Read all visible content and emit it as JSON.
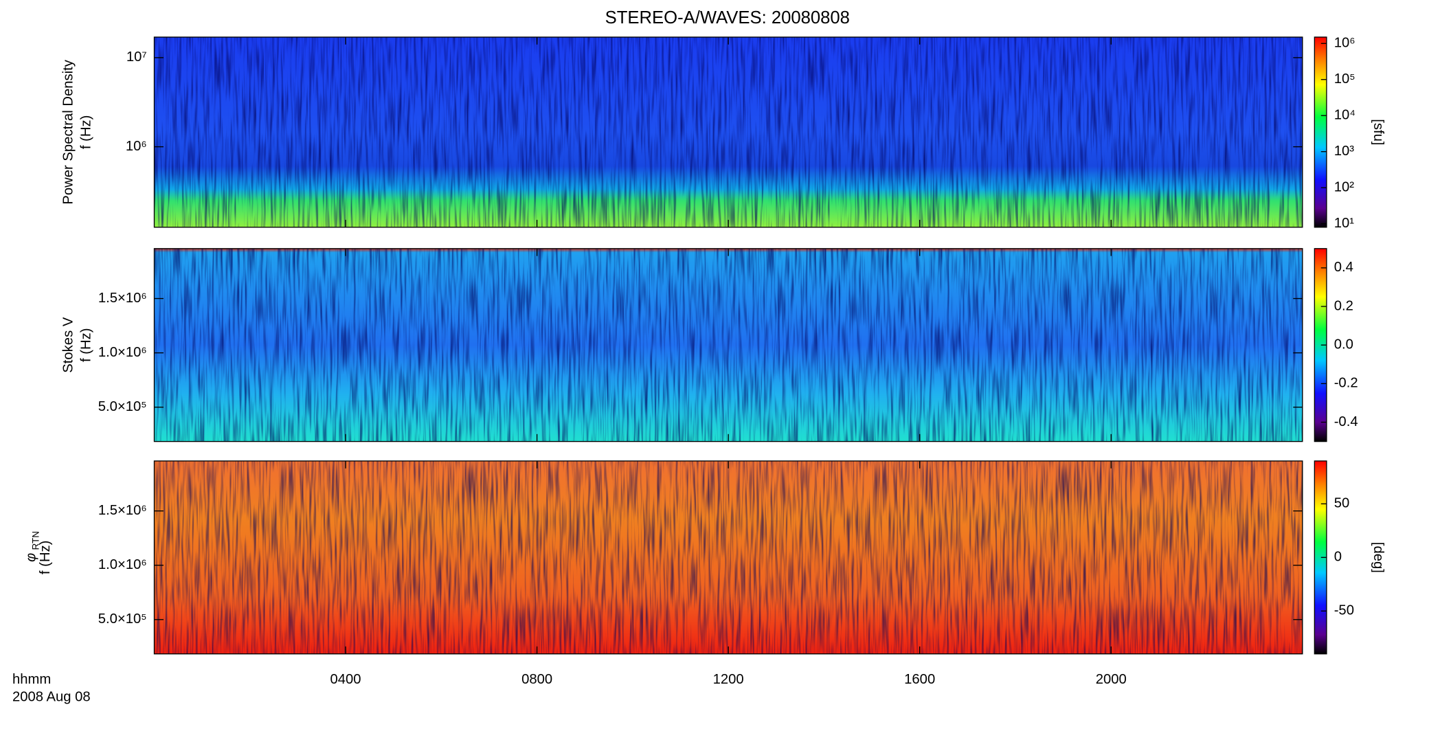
{
  "title": "STEREO-A/WAVES: 20080808",
  "x_label": "hhmm",
  "date_label": "2008 Aug 08",
  "xlim": [
    0,
    24
  ],
  "xticks": [
    {
      "value": 4,
      "label": "0400"
    },
    {
      "value": 8,
      "label": "0800"
    },
    {
      "value": 12,
      "label": "1200"
    },
    {
      "value": 16,
      "label": "1600"
    },
    {
      "value": 20,
      "label": "2000"
    }
  ],
  "chart_data": [
    {
      "type": "heatmap",
      "ylabel": "Power Spectral Density",
      "ylabel2": "f (Hz)",
      "ylog": true,
      "ylim": [
        125000,
        17000000
      ],
      "yticks": [
        {
          "value": 1000000,
          "label": "10⁶"
        },
        {
          "value": 10000000,
          "label": "10⁷"
        }
      ],
      "clog": true,
      "clim": [
        8,
        1500000
      ],
      "clabel": "[sfu]",
      "cticks": [
        {
          "value": 10,
          "label": "10¹"
        },
        {
          "value": 100,
          "label": "10²"
        },
        {
          "value": 1000,
          "label": "10³"
        },
        {
          "value": 10000,
          "label": "10⁴"
        },
        {
          "value": 100000,
          "label": "10⁵"
        },
        {
          "value": 1000000,
          "label": "10⁶"
        }
      ]
    },
    {
      "type": "heatmap",
      "ylabel": "Stokes V",
      "ylabel2": "f (Hz)",
      "ylog": false,
      "ylim": [
        184000,
        1960000
      ],
      "yticks": [
        {
          "value": 500000,
          "label": "5.0×10⁵"
        },
        {
          "value": 1000000,
          "label": "1.0×10⁶"
        },
        {
          "value": 1500000,
          "label": "1.5×10⁶"
        }
      ],
      "clog": false,
      "clim": [
        -0.5,
        0.5
      ],
      "cticks": [
        -0.4,
        -0.2,
        {
          "value": 0,
          "label": "0.0"
        },
        0.2,
        0.4
      ]
    },
    {
      "type": "heatmap",
      "ylabel": "φ",
      "ylabel_sub": "RTN",
      "ylabel2": "f (Hz)",
      "ylog": false,
      "ylim": [
        184000,
        1960000
      ],
      "yticks": [
        {
          "value": 500000,
          "label": "5.0×10⁵"
        },
        {
          "value": 1000000,
          "label": "1.0×10⁶"
        },
        {
          "value": 1500000,
          "label": "1.5×10⁶"
        }
      ],
      "clog": false,
      "clim": [
        -90,
        90
      ],
      "clabel": "[deg]",
      "cticks": [
        -50,
        0,
        50
      ]
    }
  ]
}
